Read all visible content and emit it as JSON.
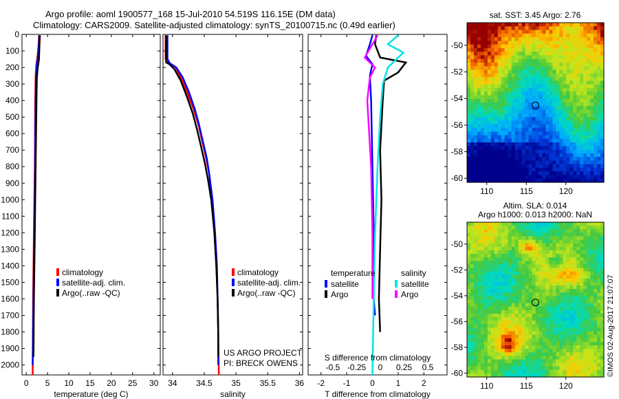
{
  "header": {
    "line1": "Argo profile: aoml 1900577_168 15-Jul-2010 54.519S 116.15E (DM data)",
    "line2": "Climatology: CARS2009. Satellite-adjusted climatology: synTS_20100715.nc (0.49d earlier)"
  },
  "legend": {
    "climatology": "climatology",
    "satellite_adj": "satellite-adj. clim.",
    "argo_raw": "Argo(..raw -QC)",
    "temperature_head": "temperature",
    "salinity_head": "salinity",
    "satellite": "satellite",
    "argo": "Argo"
  },
  "credits": {
    "project": "US ARGO PROJECT",
    "pi": "PI: BRECK OWENS"
  },
  "watermark": "©IMOS 02-Aug-2017 21:07:07",
  "colors": {
    "climatology": "#ff0000",
    "satellite_adj": "#0000ff",
    "argo": "#000000",
    "sat_salinity": "#00e5e5",
    "argo_salinity": "#ff00ff"
  },
  "chart_data": [
    {
      "type": "line",
      "id": "temperature",
      "xlabel": "temperature (deg C)",
      "xlim": [
        -1,
        31.5
      ],
      "ylim": [
        2060,
        0
      ],
      "xticks": [
        0,
        5,
        10,
        15,
        20,
        25,
        30
      ],
      "yticks": [
        0,
        100,
        200,
        300,
        400,
        500,
        600,
        700,
        800,
        900,
        1000,
        1100,
        1200,
        1300,
        1400,
        1500,
        1600,
        1700,
        1800,
        1900,
        2000
      ],
      "series": [
        {
          "key": "climatology",
          "color": "#ff0000",
          "points": [
            [
              3.0,
              5
            ],
            [
              2.9,
              60
            ],
            [
              2.7,
              120
            ],
            [
              2.4,
              180
            ],
            [
              2.2,
              250
            ],
            [
              2.1,
              400
            ],
            [
              2.0,
              800
            ],
            [
              1.8,
              1200
            ],
            [
              1.6,
              1600
            ],
            [
              1.5,
              2060
            ]
          ]
        },
        {
          "key": "satellite_adj",
          "color": "#0000ff",
          "points": [
            [
              3.1,
              5
            ],
            [
              3.0,
              60
            ],
            [
              2.8,
              120
            ],
            [
              2.5,
              180
            ],
            [
              2.3,
              250
            ],
            [
              2.2,
              400
            ],
            [
              2.1,
              800
            ],
            [
              1.9,
              1200
            ],
            [
              1.7,
              1600
            ],
            [
              1.5,
              2000
            ]
          ]
        },
        {
          "key": "argo",
          "color": "#000000",
          "points": [
            [
              3.2,
              5
            ],
            [
              3.1,
              60
            ],
            [
              3.0,
              150
            ],
            [
              2.7,
              200
            ],
            [
              2.5,
              260
            ],
            [
              2.4,
              400
            ],
            [
              2.2,
              800
            ],
            [
              2.0,
              1200
            ],
            [
              1.8,
              1600
            ],
            [
              1.7,
              1950
            ]
          ]
        }
      ]
    },
    {
      "type": "line",
      "id": "salinity",
      "xlabel": "salinity",
      "xlim": [
        33.85,
        36.05
      ],
      "ylim": [
        2060,
        0
      ],
      "xticks": [
        34,
        34.5,
        35,
        35.5,
        36
      ],
      "series": [
        {
          "key": "climatology",
          "color": "#ff0000",
          "points": [
            [
              33.89,
              5
            ],
            [
              33.89,
              150
            ],
            [
              33.93,
              170
            ],
            [
              34.05,
              200
            ],
            [
              34.13,
              260
            ],
            [
              34.23,
              350
            ],
            [
              34.33,
              450
            ],
            [
              34.41,
              550
            ],
            [
              34.47,
              650
            ],
            [
              34.53,
              750
            ],
            [
              34.58,
              850
            ],
            [
              34.62,
              1000
            ],
            [
              34.66,
              1200
            ],
            [
              34.69,
              1400
            ],
            [
              34.71,
              1600
            ],
            [
              34.72,
              1800
            ],
            [
              34.73,
              2060
            ]
          ]
        },
        {
          "key": "satellite_adj",
          "color": "#0000ff",
          "points": [
            [
              33.92,
              5
            ],
            [
              33.92,
              150
            ],
            [
              33.96,
              175
            ],
            [
              34.06,
              200
            ],
            [
              34.16,
              260
            ],
            [
              34.26,
              350
            ],
            [
              34.35,
              450
            ],
            [
              34.42,
              550
            ],
            [
              34.48,
              650
            ],
            [
              34.54,
              750
            ],
            [
              34.58,
              850
            ],
            [
              34.63,
              1000
            ],
            [
              34.67,
              1200
            ],
            [
              34.7,
              1400
            ],
            [
              34.71,
              1600
            ],
            [
              34.72,
              1800
            ],
            [
              34.72,
              2000
            ]
          ]
        },
        {
          "key": "argo",
          "color": "#000000",
          "points": [
            [
              33.9,
              5
            ],
            [
              33.9,
              170
            ],
            [
              33.95,
              180
            ],
            [
              34.03,
              210
            ],
            [
              34.13,
              280
            ],
            [
              34.23,
              380
            ],
            [
              34.32,
              480
            ],
            [
              34.39,
              580
            ],
            [
              34.45,
              680
            ],
            [
              34.51,
              780
            ],
            [
              34.56,
              880
            ],
            [
              34.61,
              1000
            ],
            [
              34.66,
              1200
            ],
            [
              34.69,
              1400
            ],
            [
              34.71,
              1600
            ],
            [
              34.72,
              1800
            ],
            [
              34.72,
              1950
            ]
          ]
        }
      ]
    },
    {
      "type": "line",
      "id": "difference",
      "xlabel": "T difference from climatology",
      "top_xlabel": "S difference from climatology",
      "xlim": [
        -2.5,
        2.9
      ],
      "ylim": [
        2060,
        0
      ],
      "xticks": [
        -2,
        -1,
        0,
        1,
        2
      ],
      "top_xticks": [
        "-0.5",
        "-0.25",
        "0",
        "0.25",
        "0.5"
      ],
      "series": [
        {
          "key": "temp_satellite",
          "color": "#0000ff",
          "points": [
            [
              0.0,
              5
            ],
            [
              -0.1,
              60
            ],
            [
              -0.25,
              130
            ],
            [
              0.0,
              180
            ],
            [
              -0.1,
              250
            ],
            [
              -0.05,
              400
            ],
            [
              0.0,
              800
            ],
            [
              0.05,
              1200
            ],
            [
              0.05,
              1600
            ],
            [
              0.1,
              1700
            ]
          ]
        },
        {
          "key": "temp_argo",
          "color": "#000000",
          "points": [
            [
              0.15,
              5
            ],
            [
              0.1,
              60
            ],
            [
              0.3,
              140
            ],
            [
              1.3,
              170
            ],
            [
              1.0,
              230
            ],
            [
              0.45,
              280
            ],
            [
              0.4,
              400
            ],
            [
              0.3,
              700
            ],
            [
              0.35,
              1000
            ],
            [
              0.3,
              1300
            ],
            [
              0.25,
              1600
            ],
            [
              0.3,
              1800
            ]
          ]
        },
        {
          "key": "sal_satellite",
          "color": "#00e5e5",
          "points": [
            [
              1.0,
              5
            ],
            [
              0.6,
              60
            ],
            [
              1.2,
              110
            ],
            [
              0.6,
              200
            ],
            [
              0.4,
              300
            ],
            [
              0.3,
              500
            ],
            [
              0.2,
              800
            ],
            [
              0.1,
              1200
            ],
            [
              0.05,
              1600
            ],
            [
              0.0,
              2060
            ]
          ]
        },
        {
          "key": "sal_argo",
          "color": "#ff00ff",
          "points": [
            [
              0.2,
              5
            ],
            [
              -0.3,
              140
            ],
            [
              0.1,
              200
            ],
            [
              -0.1,
              260
            ],
            [
              -0.2,
              400
            ],
            [
              -0.05,
              800
            ],
            [
              0.0,
              1200
            ],
            [
              0.0,
              1600
            ]
          ]
        }
      ]
    },
    {
      "type": "heatmap",
      "id": "sst-map",
      "title": "sat. SST: 3.45 Argo: 2.76",
      "xticks": [
        110,
        115,
        120
      ],
      "yticks": [
        -50,
        -52,
        -54,
        -56,
        -58,
        -60
      ],
      "xlim": [
        107.5,
        124.8
      ],
      "ylim": [
        -60.3,
        -48.3
      ],
      "marker": [
        116.15,
        -54.52
      ]
    },
    {
      "type": "heatmap",
      "id": "sla-map",
      "title_line1": "Altim. SLA: 0.014",
      "title_line2": "Argo h1000: 0.013 h2000: NaN",
      "xticks": [
        110,
        115,
        120
      ],
      "yticks": [
        -50,
        -52,
        -54,
        -56,
        -58,
        -60
      ],
      "xlim": [
        107.5,
        124.8
      ],
      "ylim": [
        -60.3,
        -48.3
      ],
      "marker": [
        116.15,
        -54.52
      ]
    }
  ]
}
